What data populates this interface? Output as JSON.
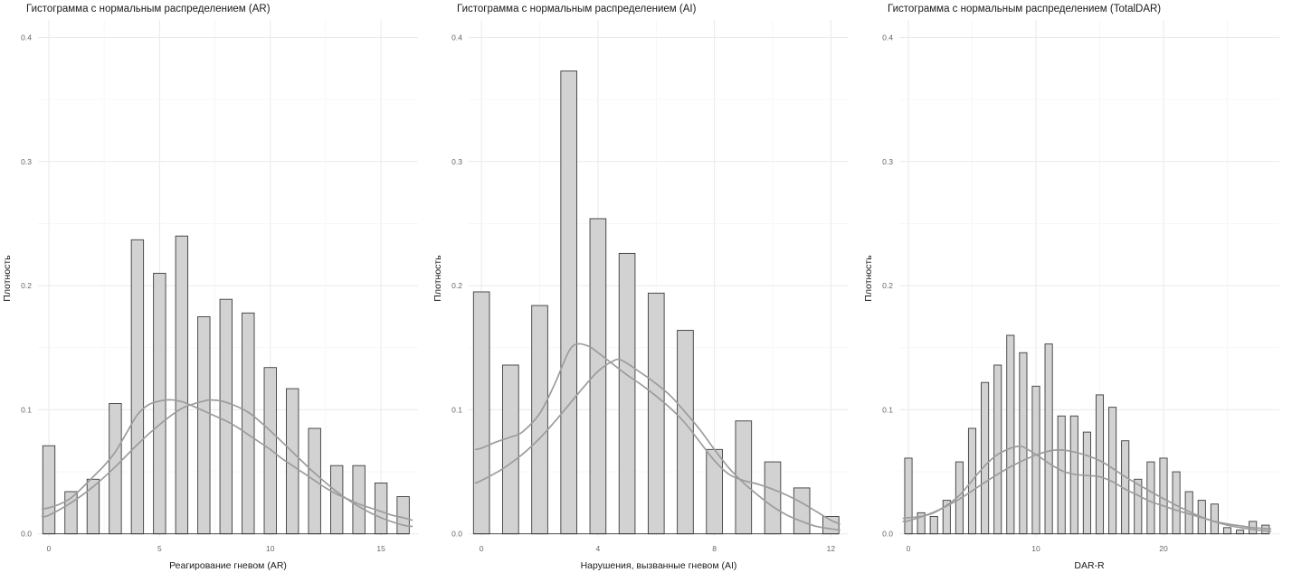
{
  "colors": {
    "background": "#ffffff",
    "bar_fill": "#d2d2d2",
    "bar_stroke": "#3c3c3c",
    "curve": "#9c9c9c",
    "grid_major": "#eaeaea",
    "grid_minor": "#f5f5f5",
    "title_text": "#1a1a1a",
    "tick_text": "#666666"
  },
  "chart_data": [
    {
      "type": "bar",
      "subtype": "histogram-with-density-and-normal-curves",
      "title": "Гистограмма с нормальным распределением (AR)",
      "xlabel": "Реагирование гневом (AR)",
      "ylabel": "Плотность",
      "xlim": [
        -0.49,
        16.67
      ],
      "ylim": [
        0,
        0.4
      ],
      "grid": true,
      "legend": false,
      "x_tick_values": [
        0,
        5,
        10,
        15
      ],
      "x_tick_labels": [
        "0",
        "5",
        "10",
        "15"
      ],
      "x_minor": [
        2.5,
        7.5,
        12.5
      ],
      "y_tick_values": [
        0,
        0.1,
        0.2,
        0.3,
        0.4
      ],
      "y_tick_labels": [
        "0.0",
        "0.1",
        "0.2",
        "0.3",
        "0.4"
      ],
      "y_minor": [
        0.05,
        0.15,
        0.25,
        0.35
      ],
      "bar_width_units": 0.55,
      "categories": [
        0,
        1,
        2,
        3,
        4,
        5,
        6,
        7,
        8,
        9,
        10,
        11,
        12,
        13,
        14,
        15,
        16
      ],
      "values": [
        0.071,
        0.034,
        0.044,
        0.105,
        0.237,
        0.21,
        0.24,
        0.175,
        0.189,
        0.178,
        0.134,
        0.117,
        0.085,
        0.055,
        0.055,
        0.041,
        0.03
      ],
      "curves": [
        {
          "name": "kde-density",
          "points": [
            [
              -0.3,
              0.02
            ],
            [
              0,
              0.021
            ],
            [
              0.5,
              0.024
            ],
            [
              1,
              0.029
            ],
            [
              1.5,
              0.037
            ],
            [
              2,
              0.046
            ],
            [
              2.5,
              0.055
            ],
            [
              3,
              0.066
            ],
            [
              3.5,
              0.081
            ],
            [
              4,
              0.096
            ],
            [
              4.5,
              0.104
            ],
            [
              5,
              0.107
            ],
            [
              5.5,
              0.108
            ],
            [
              6,
              0.1065
            ],
            [
              6.5,
              0.103
            ],
            [
              7,
              0.099
            ],
            [
              7.5,
              0.095
            ],
            [
              8,
              0.091
            ],
            [
              8.5,
              0.086
            ],
            [
              9,
              0.08
            ],
            [
              9.5,
              0.074
            ],
            [
              10,
              0.068
            ],
            [
              10.5,
              0.061
            ],
            [
              11,
              0.055
            ],
            [
              11.5,
              0.049
            ],
            [
              12,
              0.043
            ],
            [
              12.5,
              0.037
            ],
            [
              13,
              0.032
            ],
            [
              13.5,
              0.028
            ],
            [
              14,
              0.024
            ],
            [
              14.5,
              0.021
            ],
            [
              15,
              0.018
            ],
            [
              15.5,
              0.015
            ],
            [
              16,
              0.013
            ],
            [
              16.4,
              0.011
            ]
          ]
        },
        {
          "name": "normal-fit",
          "points": [
            [
              -0.3,
              0.014
            ],
            [
              0,
              0.015
            ],
            [
              1,
              0.025
            ],
            [
              2,
              0.038
            ],
            [
              3,
              0.054
            ],
            [
              4,
              0.072
            ],
            [
              5,
              0.088
            ],
            [
              6,
              0.101
            ],
            [
              7,
              0.107
            ],
            [
              7.4,
              0.1078
            ],
            [
              8,
              0.106
            ],
            [
              9,
              0.098
            ],
            [
              10,
              0.083
            ],
            [
              11,
              0.066
            ],
            [
              12,
              0.049
            ],
            [
              13,
              0.034
            ],
            [
              14,
              0.022
            ],
            [
              15,
              0.013
            ],
            [
              16,
              0.007
            ],
            [
              16.4,
              0.006
            ]
          ]
        }
      ]
    },
    {
      "type": "bar",
      "subtype": "histogram-with-density-and-normal-curves",
      "title": "Гистограмма с нормальным распределением (AI)",
      "xlabel": "Нарушения, вызванные гневом (AI)",
      "ylabel": "Плотность",
      "xlim": [
        -0.44,
        12.61
      ],
      "ylim": [
        0,
        0.4
      ],
      "grid": true,
      "legend": false,
      "x_tick_values": [
        0,
        4,
        8,
        12
      ],
      "x_tick_labels": [
        "0",
        "4",
        "8",
        "12"
      ],
      "x_minor": [
        2,
        6,
        10
      ],
      "y_tick_values": [
        0,
        0.1,
        0.2,
        0.3,
        0.4
      ],
      "y_tick_labels": [
        "0.0",
        "0.1",
        "0.2",
        "0.3",
        "0.4"
      ],
      "y_minor": [
        0.05,
        0.15,
        0.25,
        0.35
      ],
      "bar_width_units": 0.55,
      "categories": [
        0,
        1,
        2,
        3,
        4,
        5,
        6,
        7,
        8,
        9,
        10,
        11,
        12
      ],
      "values": [
        0.195,
        0.136,
        0.184,
        0.373,
        0.254,
        0.226,
        0.194,
        0.164,
        0.068,
        0.091,
        0.058,
        0.037,
        0.014
      ],
      "curves": [
        {
          "name": "kde-density",
          "points": [
            [
              -0.2,
              0.068
            ],
            [
              0,
              0.069
            ],
            [
              0.5,
              0.074
            ],
            [
              1,
              0.078
            ],
            [
              1.4,
              0.082
            ],
            [
              2,
              0.097
            ],
            [
              2.5,
              0.12
            ],
            [
              3,
              0.147
            ],
            [
              3.3,
              0.153
            ],
            [
              3.7,
              0.151
            ],
            [
              4,
              0.146
            ],
            [
              4.5,
              0.137
            ],
            [
              5,
              0.128
            ],
            [
              5.5,
              0.12
            ],
            [
              6,
              0.111
            ],
            [
              6.5,
              0.101
            ],
            [
              7,
              0.089
            ],
            [
              7.5,
              0.074
            ],
            [
              8,
              0.059
            ],
            [
              8.5,
              0.048
            ],
            [
              9,
              0.043
            ],
            [
              9.5,
              0.04
            ],
            [
              10,
              0.036
            ],
            [
              10.5,
              0.031
            ],
            [
              11,
              0.025
            ],
            [
              11.5,
              0.018
            ],
            [
              12,
              0.011
            ],
            [
              12.3,
              0.008
            ]
          ]
        },
        {
          "name": "normal-fit",
          "points": [
            [
              -0.2,
              0.041
            ],
            [
              0,
              0.043
            ],
            [
              0.7,
              0.052
            ],
            [
              1.4,
              0.064
            ],
            [
              2,
              0.077
            ],
            [
              2.5,
              0.09
            ],
            [
              3,
              0.104
            ],
            [
              3.5,
              0.118
            ],
            [
              4,
              0.131
            ],
            [
              4.5,
              0.139
            ],
            [
              4.8,
              0.14
            ],
            [
              5.4,
              0.131
            ],
            [
              6,
              0.121
            ],
            [
              6.5,
              0.111
            ],
            [
              7,
              0.098
            ],
            [
              7.5,
              0.084
            ],
            [
              8,
              0.068
            ],
            [
              8.5,
              0.053
            ],
            [
              9,
              0.041
            ],
            [
              9.5,
              0.031
            ],
            [
              10,
              0.022
            ],
            [
              10.5,
              0.015
            ],
            [
              11,
              0.01
            ],
            [
              11.5,
              0.006
            ],
            [
              12,
              0.004
            ],
            [
              12.3,
              0.003
            ]
          ]
        }
      ]
    },
    {
      "type": "bar",
      "subtype": "histogram-with-density-and-normal-curves",
      "title": "Гистограмма с нормальным распределением (TotalDAR)",
      "xlabel": "DAR-R",
      "ylabel": "Плотность",
      "xlim": [
        -0.71,
        29.08
      ],
      "ylim": [
        0,
        0.4
      ],
      "grid": true,
      "legend": false,
      "x_tick_values": [
        0,
        10,
        20
      ],
      "x_tick_labels": [
        "0",
        "10",
        "20"
      ],
      "x_minor": [
        5,
        15,
        25
      ],
      "y_tick_values": [
        0,
        0.1,
        0.2,
        0.3,
        0.4
      ],
      "y_tick_labels": [
        "0.0",
        "0.1",
        "0.2",
        "0.3",
        "0.4"
      ],
      "y_minor": [
        0.05,
        0.15,
        0.25,
        0.35
      ],
      "bar_width_units": 0.58,
      "categories": [
        0,
        1,
        2,
        3,
        4,
        5,
        6,
        7,
        8,
        9,
        10,
        11,
        12,
        13,
        14,
        15,
        16,
        17,
        18,
        19,
        20,
        21,
        22,
        23,
        24,
        25,
        26,
        27,
        28
      ],
      "values": [
        0.061,
        0.017,
        0.014,
        0.027,
        0.058,
        0.085,
        0.122,
        0.136,
        0.16,
        0.146,
        0.119,
        0.153,
        0.095,
        0.095,
        0.082,
        0.112,
        0.102,
        0.075,
        0.044,
        0.058,
        0.061,
        0.05,
        0.034,
        0.027,
        0.024,
        0.005,
        0.003,
        0.01,
        0.007
      ],
      "curves": [
        {
          "name": "kde-density",
          "points": [
            [
              -0.4,
              0.0125
            ],
            [
              0,
              0.013
            ],
            [
              1,
              0.014
            ],
            [
              2,
              0.017
            ],
            [
              3,
              0.023
            ],
            [
              4,
              0.031
            ],
            [
              5,
              0.043
            ],
            [
              6,
              0.055
            ],
            [
              7,
              0.064
            ],
            [
              8,
              0.069
            ],
            [
              8.6,
              0.0705
            ],
            [
              9,
              0.07
            ],
            [
              10,
              0.064
            ],
            [
              11,
              0.057
            ],
            [
              12,
              0.051
            ],
            [
              13,
              0.048
            ],
            [
              14,
              0.047
            ],
            [
              15,
              0.046
            ],
            [
              16,
              0.042
            ],
            [
              17,
              0.036
            ],
            [
              18,
              0.031
            ],
            [
              19,
              0.026
            ],
            [
              20,
              0.0225
            ],
            [
              21,
              0.019
            ],
            [
              22,
              0.016
            ],
            [
              23,
              0.013
            ],
            [
              24,
              0.01
            ],
            [
              25,
              0.008
            ],
            [
              26,
              0.0065
            ],
            [
              27,
              0.005
            ],
            [
              28.4,
              0.004
            ]
          ]
        },
        {
          "name": "normal-fit",
          "points": [
            [
              -0.4,
              0.01
            ],
            [
              0,
              0.0105
            ],
            [
              2,
              0.0175
            ],
            [
              4,
              0.028
            ],
            [
              6,
              0.0415
            ],
            [
              8,
              0.054
            ],
            [
              10,
              0.0635
            ],
            [
              11.5,
              0.0675
            ],
            [
              13,
              0.066
            ],
            [
              15,
              0.059
            ],
            [
              17,
              0.046
            ],
            [
              19,
              0.034
            ],
            [
              21,
              0.023
            ],
            [
              23,
              0.0135
            ],
            [
              25,
              0.007
            ],
            [
              27,
              0.0035
            ],
            [
              28.4,
              0.002
            ]
          ]
        }
      ]
    }
  ]
}
